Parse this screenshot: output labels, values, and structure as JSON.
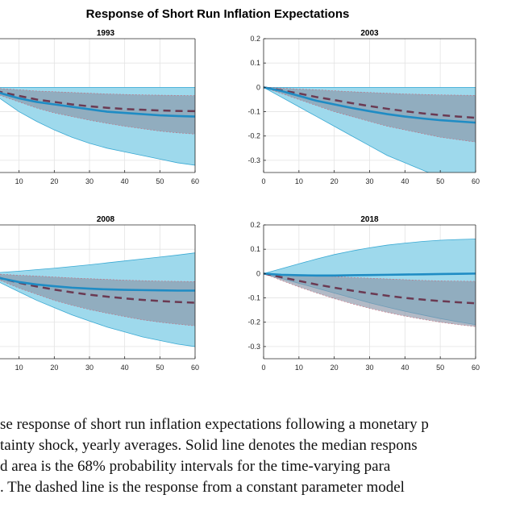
{
  "figure_title": "Response of Short Run Inflation Expectations",
  "caption_lines": [
    "se response of short run inflation expectations following a monetary p",
    "tainty shock, yearly averages. Solid line denotes the median respons",
    "d area is the 68% probability intervals for the time-varying para",
    ". The dashed line is the response from a constant parameter model"
  ],
  "colors": {
    "band_fill": "#9ed9ec",
    "band_edge": "#39a9d3",
    "dashed_band_fill": "#8a95a8",
    "median_line": "#1f8cc4",
    "dashed_line": "#6b3a52",
    "axis": "#262626",
    "grid": "#e3e3e3"
  },
  "chart_data": [
    {
      "type": "area",
      "title": "1993",
      "xlim": [
        0,
        60
      ],
      "ylim": [
        -0.35,
        0.2
      ],
      "x_ticks": [
        10,
        20,
        30,
        40,
        50,
        60
      ],
      "y_ticks": [],
      "x": [
        0,
        5,
        10,
        15,
        20,
        25,
        30,
        35,
        40,
        45,
        50,
        55,
        60
      ],
      "series": [
        {
          "role": "tv_median",
          "values": [
            0,
            -0.025,
            -0.045,
            -0.06,
            -0.07,
            -0.08,
            -0.09,
            -0.1,
            -0.105,
            -0.11,
            -0.115,
            -0.118,
            -0.12
          ]
        },
        {
          "role": "tv_upper",
          "values": [
            0,
            0,
            0,
            0,
            0,
            0,
            0,
            0,
            0,
            0,
            0,
            0,
            0
          ]
        },
        {
          "role": "tv_lower",
          "values": [
            0,
            -0.05,
            -0.1,
            -0.14,
            -0.175,
            -0.205,
            -0.23,
            -0.25,
            -0.265,
            -0.28,
            -0.295,
            -0.31,
            -0.32
          ]
        },
        {
          "role": "const_median",
          "values": [
            0,
            -0.02,
            -0.035,
            -0.05,
            -0.06,
            -0.07,
            -0.078,
            -0.084,
            -0.089,
            -0.092,
            -0.095,
            -0.097,
            -0.098
          ]
        },
        {
          "role": "const_upper",
          "values": [
            0,
            -0.005,
            -0.01,
            -0.015,
            -0.018,
            -0.021,
            -0.024,
            -0.027,
            -0.029,
            -0.031,
            -0.032,
            -0.033,
            -0.034
          ]
        },
        {
          "role": "const_lower",
          "values": [
            0,
            -0.035,
            -0.06,
            -0.085,
            -0.105,
            -0.12,
            -0.135,
            -0.148,
            -0.16,
            -0.17,
            -0.18,
            -0.187,
            -0.192
          ]
        }
      ]
    },
    {
      "type": "area",
      "title": "2003",
      "xlim": [
        0,
        60
      ],
      "ylim": [
        -0.35,
        0.2
      ],
      "x_ticks": [
        0,
        10,
        20,
        30,
        40,
        50,
        60
      ],
      "y_ticks": [
        0.2,
        0.1,
        0,
        -0.1,
        -0.2,
        -0.3
      ],
      "x": [
        0,
        5,
        10,
        15,
        20,
        25,
        30,
        35,
        40,
        45,
        50,
        55,
        60
      ],
      "series": [
        {
          "role": "tv_median",
          "values": [
            0,
            -0.015,
            -0.035,
            -0.055,
            -0.07,
            -0.085,
            -0.098,
            -0.11,
            -0.12,
            -0.128,
            -0.135,
            -0.14,
            -0.145
          ]
        },
        {
          "role": "tv_upper",
          "values": [
            0,
            0,
            0,
            0,
            0,
            0,
            0,
            0,
            0,
            0,
            0,
            0,
            0
          ]
        },
        {
          "role": "tv_lower",
          "values": [
            0,
            -0.04,
            -0.08,
            -0.12,
            -0.16,
            -0.2,
            -0.24,
            -0.28,
            -0.31,
            -0.34,
            -0.37,
            -0.39,
            -0.41
          ]
        },
        {
          "role": "const_median",
          "values": [
            0,
            -0.012,
            -0.025,
            -0.04,
            -0.052,
            -0.065,
            -0.077,
            -0.088,
            -0.098,
            -0.107,
            -0.114,
            -0.12,
            -0.125
          ]
        },
        {
          "role": "const_upper",
          "values": [
            0,
            -0.003,
            -0.007,
            -0.01,
            -0.014,
            -0.018,
            -0.021,
            -0.024,
            -0.027,
            -0.029,
            -0.031,
            -0.032,
            -0.033
          ]
        },
        {
          "role": "const_lower",
          "values": [
            0,
            -0.025,
            -0.05,
            -0.075,
            -0.1,
            -0.12,
            -0.14,
            -0.16,
            -0.175,
            -0.19,
            -0.205,
            -0.215,
            -0.225
          ]
        }
      ]
    },
    {
      "type": "area",
      "title": "2008",
      "xlim": [
        0,
        60
      ],
      "ylim": [
        -0.35,
        0.2
      ],
      "x_ticks": [
        10,
        20,
        30,
        40,
        50,
        60
      ],
      "y_ticks": [],
      "x": [
        0,
        5,
        10,
        15,
        20,
        25,
        30,
        35,
        40,
        45,
        50,
        55,
        60
      ],
      "series": [
        {
          "role": "tv_median",
          "values": [
            0,
            -0.02,
            -0.035,
            -0.045,
            -0.052,
            -0.058,
            -0.062,
            -0.065,
            -0.067,
            -0.068,
            -0.069,
            -0.07,
            -0.07
          ]
        },
        {
          "role": "tv_upper",
          "values": [
            0,
            0.005,
            0.01,
            0.016,
            0.022,
            0.029,
            0.036,
            0.044,
            0.052,
            0.06,
            0.068,
            0.076,
            0.085
          ]
        },
        {
          "role": "tv_lower",
          "values": [
            0,
            -0.04,
            -0.075,
            -0.11,
            -0.14,
            -0.17,
            -0.195,
            -0.22,
            -0.24,
            -0.26,
            -0.275,
            -0.29,
            -0.3
          ]
        },
        {
          "role": "const_median",
          "values": [
            0,
            -0.02,
            -0.038,
            -0.053,
            -0.066,
            -0.077,
            -0.087,
            -0.095,
            -0.102,
            -0.108,
            -0.113,
            -0.117,
            -0.12
          ]
        },
        {
          "role": "const_upper",
          "values": [
            0,
            -0.003,
            -0.007,
            -0.01,
            -0.014,
            -0.018,
            -0.021,
            -0.024,
            -0.027,
            -0.029,
            -0.031,
            -0.032,
            -0.033
          ]
        },
        {
          "role": "const_lower",
          "values": [
            0,
            -0.03,
            -0.06,
            -0.085,
            -0.11,
            -0.13,
            -0.148,
            -0.163,
            -0.177,
            -0.19,
            -0.2,
            -0.208,
            -0.215
          ]
        }
      ]
    },
    {
      "type": "area",
      "title": "2018",
      "xlim": [
        0,
        60
      ],
      "ylim": [
        -0.35,
        0.2
      ],
      "x_ticks": [
        0,
        10,
        20,
        30,
        40,
        50,
        60
      ],
      "y_ticks": [
        0.2,
        0.1,
        0,
        -0.1,
        -0.2,
        -0.3
      ],
      "x": [
        0,
        5,
        10,
        15,
        20,
        25,
        30,
        35,
        40,
        45,
        50,
        55,
        60
      ],
      "series": [
        {
          "role": "tv_median",
          "values": [
            0,
            -0.005,
            -0.007,
            -0.008,
            -0.008,
            -0.007,
            -0.006,
            -0.005,
            -0.004,
            -0.003,
            -0.002,
            -0.001,
            0
          ]
        },
        {
          "role": "tv_upper",
          "values": [
            0,
            0.02,
            0.04,
            0.06,
            0.078,
            0.093,
            0.106,
            0.117,
            0.125,
            0.132,
            0.137,
            0.14,
            0.142
          ]
        },
        {
          "role": "tv_lower",
          "values": [
            0,
            -0.02,
            -0.04,
            -0.06,
            -0.08,
            -0.1,
            -0.12,
            -0.138,
            -0.155,
            -0.17,
            -0.185,
            -0.198,
            -0.21
          ]
        },
        {
          "role": "const_median",
          "values": [
            0,
            -0.015,
            -0.03,
            -0.045,
            -0.058,
            -0.07,
            -0.081,
            -0.091,
            -0.1,
            -0.107,
            -0.113,
            -0.118,
            -0.122
          ]
        },
        {
          "role": "const_upper",
          "values": [
            0,
            -0.003,
            -0.006,
            -0.009,
            -0.012,
            -0.016,
            -0.019,
            -0.022,
            -0.025,
            -0.028,
            -0.03,
            -0.031,
            -0.032
          ]
        },
        {
          "role": "const_lower",
          "values": [
            0,
            -0.028,
            -0.055,
            -0.08,
            -0.103,
            -0.124,
            -0.143,
            -0.16,
            -0.175,
            -0.188,
            -0.2,
            -0.21,
            -0.218
          ]
        }
      ]
    }
  ]
}
